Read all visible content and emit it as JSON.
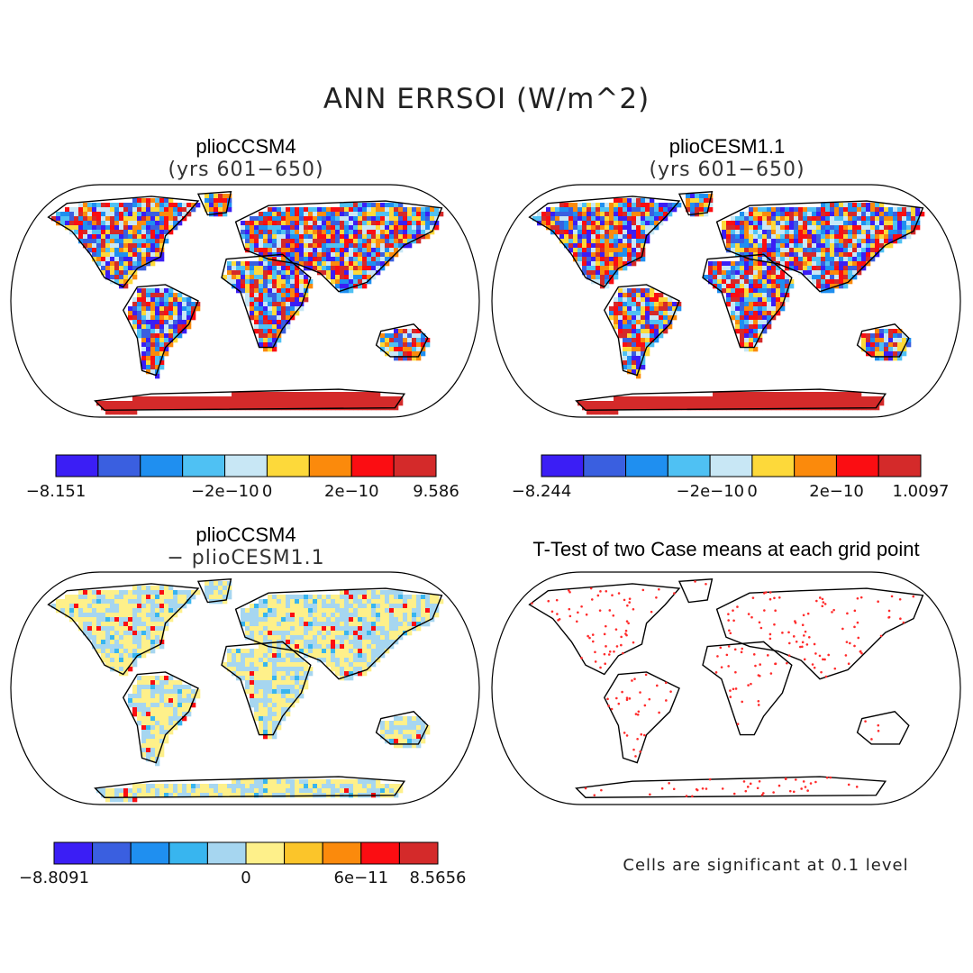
{
  "title": "ANN ERRSOI (W/m^2)",
  "panels": [
    {
      "id": "a",
      "name": "plioCCSM4",
      "subtitle": "(yrs 601−650)",
      "colorbar": {
        "colors": [
          "#3b1ef5",
          "#3a5fe0",
          "#1f8ff0",
          "#4fc1f3",
          "#c8e7f5",
          "#fdd93a",
          "#fb8a0c",
          "#fb0d12",
          "#d42a2a"
        ],
        "labels": [
          "−8.151",
          "−2e−10",
          "0",
          "2e−10",
          "9.586"
        ]
      }
    },
    {
      "id": "b",
      "name": "plioCESM1.1",
      "subtitle": "(yrs 601−650)",
      "colorbar": {
        "colors": [
          "#3b1ef5",
          "#3a5fe0",
          "#1f8ff0",
          "#4fc1f3",
          "#c8e7f5",
          "#fdd93a",
          "#fb8a0c",
          "#fb0d12",
          "#d42a2a"
        ],
        "labels": [
          "−8.244",
          "−2e−10",
          "0",
          "2e−10",
          "1.0097"
        ]
      }
    },
    {
      "id": "c",
      "name": "plioCCSM4",
      "subtitle": "− plioCESM1.1",
      "colorbar": {
        "colors": [
          "#3b1ef5",
          "#3a5fe0",
          "#1f8ff0",
          "#38b5ef",
          "#a6d6f0",
          "#fef08a",
          "#fbc52a",
          "#fb8a0c",
          "#fb0d12",
          "#d42a2a"
        ],
        "labels": [
          "−8.8091",
          "0",
          "6e−11",
          "8.5656"
        ]
      }
    },
    {
      "id": "d",
      "name": "T-Test of two Case means at each grid point",
      "note": "Cells are significant at 0.1 level"
    }
  ],
  "colors": {
    "ocean": "#ffffff",
    "outline": "#000000",
    "significance_dots": "#ff2b2b"
  }
}
